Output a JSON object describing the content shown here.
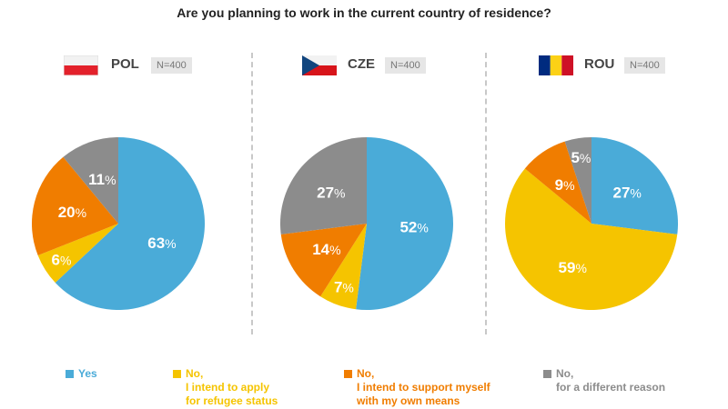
{
  "title": "Are you planning to work in the current country of residence?",
  "colors": {
    "yes": "#4aabd8",
    "refugee": "#f5c400",
    "own_means": "#f07d00",
    "other": "#8c8c8c"
  },
  "panels": [
    {
      "code": "POL",
      "n": "N=400",
      "flag": "poland-flag-icon"
    },
    {
      "code": "CZE",
      "n": "N=400",
      "flag": "czech-flag-icon"
    },
    {
      "code": "ROU",
      "n": "N=400",
      "flag": "romania-flag-icon"
    }
  ],
  "legend": [
    {
      "key": "yes",
      "lines": [
        "Yes"
      ]
    },
    {
      "key": "refugee",
      "lines": [
        "No,",
        "I intend to apply",
        "for refugee status"
      ]
    },
    {
      "key": "own_means",
      "lines": [
        "No,",
        "I intend to support myself",
        "with my own means"
      ]
    },
    {
      "key": "other",
      "lines": [
        "No,",
        "for a different reason"
      ]
    }
  ],
  "chart_data": [
    {
      "type": "pie",
      "title": "POL",
      "categories": [
        "Yes",
        "No, I intend to apply for refugee status",
        "No, I intend to support myself with my own means",
        "No, for a different reason"
      ],
      "values": [
        63,
        6,
        20,
        11
      ],
      "unit": "%"
    },
    {
      "type": "pie",
      "title": "CZE",
      "categories": [
        "Yes",
        "No, I intend to apply for refugee status",
        "No, I intend to support myself with my own means",
        "No, for a different reason"
      ],
      "values": [
        52,
        7,
        14,
        27
      ],
      "unit": "%"
    },
    {
      "type": "pie",
      "title": "ROU",
      "categories": [
        "Yes",
        "No, I intend to apply for refugee status",
        "No, I intend to support myself with my own means",
        "No, for a different reason"
      ],
      "values": [
        27,
        59,
        9,
        5
      ],
      "unit": "%"
    }
  ]
}
